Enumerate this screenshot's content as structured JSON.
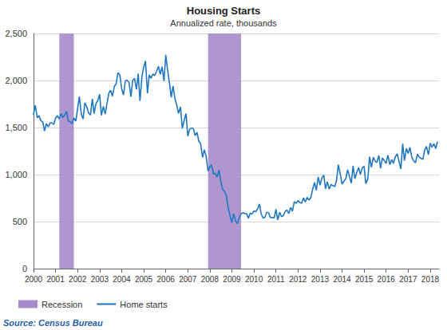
{
  "chart_data": {
    "type": "line",
    "title": "Housing Starts",
    "subtitle": "Annualized rate, thousands",
    "source": "Source: Census Bureau",
    "legend": "bottom",
    "grid": true,
    "xlim": [
      2000,
      2018.4
    ],
    "xticks": [
      2000,
      2001,
      2002,
      2003,
      2004,
      2005,
      2006,
      2007,
      2008,
      2009,
      2010,
      2011,
      2012,
      2013,
      2014,
      2015,
      2016,
      2017,
      2018
    ],
    "ylim": [
      0,
      2500
    ],
    "yticks": [
      0,
      500,
      {
        "value": 1000,
        "label": "1,000"
      },
      {
        "value": 1500,
        "label": "1,500"
      },
      {
        "value": 2000,
        "label": "2,000"
      },
      {
        "value": 2500,
        "label": "2,500"
      }
    ],
    "shading": {
      "name": "Recession",
      "color": "#a58bc9",
      "ranges": [
        [
          2001.17,
          2001.83
        ],
        [
          2007.92,
          2009.42
        ]
      ]
    },
    "x": [
      2000.0,
      2000.08,
      2000.17,
      2000.25,
      2000.33,
      2000.42,
      2000.5,
      2000.58,
      2000.67,
      2000.75,
      2000.83,
      2000.92,
      2001.0,
      2001.08,
      2001.17,
      2001.25,
      2001.33,
      2001.42,
      2001.5,
      2001.58,
      2001.67,
      2001.75,
      2001.83,
      2001.92,
      2002.0,
      2002.08,
      2002.17,
      2002.25,
      2002.33,
      2002.42,
      2002.5,
      2002.58,
      2002.67,
      2002.75,
      2002.83,
      2002.92,
      2003.0,
      2003.08,
      2003.17,
      2003.25,
      2003.33,
      2003.42,
      2003.5,
      2003.58,
      2003.67,
      2003.75,
      2003.83,
      2003.92,
      2004.0,
      2004.08,
      2004.17,
      2004.25,
      2004.33,
      2004.42,
      2004.5,
      2004.58,
      2004.67,
      2004.75,
      2004.83,
      2004.92,
      2005.0,
      2005.08,
      2005.17,
      2005.25,
      2005.33,
      2005.42,
      2005.5,
      2005.58,
      2005.67,
      2005.75,
      2005.83,
      2005.92,
      2006.0,
      2006.08,
      2006.17,
      2006.25,
      2006.33,
      2006.42,
      2006.5,
      2006.58,
      2006.67,
      2006.75,
      2006.83,
      2006.92,
      2007.0,
      2007.08,
      2007.17,
      2007.25,
      2007.33,
      2007.42,
      2007.5,
      2007.58,
      2007.67,
      2007.75,
      2007.83,
      2007.92,
      2008.0,
      2008.08,
      2008.17,
      2008.25,
      2008.33,
      2008.42,
      2008.5,
      2008.58,
      2008.67,
      2008.75,
      2008.83,
      2008.92,
      2009.0,
      2009.08,
      2009.17,
      2009.25,
      2009.33,
      2009.42,
      2009.5,
      2009.58,
      2009.67,
      2009.75,
      2009.83,
      2009.92,
      2010.0,
      2010.08,
      2010.17,
      2010.25,
      2010.33,
      2010.42,
      2010.5,
      2010.58,
      2010.67,
      2010.75,
      2010.83,
      2010.92,
      2011.0,
      2011.08,
      2011.17,
      2011.25,
      2011.33,
      2011.42,
      2011.5,
      2011.58,
      2011.67,
      2011.75,
      2011.83,
      2011.92,
      2012.0,
      2012.08,
      2012.17,
      2012.25,
      2012.33,
      2012.42,
      2012.5,
      2012.58,
      2012.67,
      2012.75,
      2012.83,
      2012.92,
      2013.0,
      2013.08,
      2013.17,
      2013.25,
      2013.33,
      2013.42,
      2013.5,
      2013.58,
      2013.67,
      2013.75,
      2013.83,
      2013.92,
      2014.0,
      2014.08,
      2014.17,
      2014.25,
      2014.33,
      2014.42,
      2014.5,
      2014.58,
      2014.67,
      2014.75,
      2014.83,
      2014.92,
      2015.0,
      2015.08,
      2015.17,
      2015.25,
      2015.33,
      2015.42,
      2015.5,
      2015.58,
      2015.67,
      2015.75,
      2015.83,
      2015.92,
      2016.0,
      2016.08,
      2016.17,
      2016.25,
      2016.33,
      2016.42,
      2016.5,
      2016.58,
      2016.67,
      2016.75,
      2016.83,
      2016.92,
      2017.0,
      2017.08,
      2017.17,
      2017.25,
      2017.33,
      2017.42,
      2017.5,
      2017.58,
      2017.67,
      2017.75,
      2017.83,
      2017.92,
      2018.0,
      2018.08,
      2018.17,
      2018.25,
      2018.33
    ],
    "series": [
      {
        "name": "Home starts",
        "color": "#1f77c4",
        "values": [
          1636,
          1737,
          1604,
          1626,
          1575,
          1559,
          1463,
          1541,
          1507,
          1549,
          1551,
          1532,
          1600,
          1625,
          1590,
          1649,
          1605,
          1636,
          1670,
          1567,
          1562,
          1540,
          1602,
          1568,
          1698,
          1829,
          1642,
          1592,
          1764,
          1717,
          1655,
          1633,
          1804,
          1648,
          1753,
          1788,
          1853,
          1629,
          1726,
          1643,
          1751,
          1867,
          1897,
          1833,
          1939,
          1967,
          2083,
          2057,
          1911,
          1846,
          1998,
          2003,
          1981,
          1828,
          2002,
          2024,
          1905,
          2072,
          1782,
          2042,
          2144,
          2207,
          1864,
          2061,
          2025,
          2068,
          2054,
          2095,
          2151,
          2065,
          2147,
          1994,
          2273,
          2119,
          1969,
          1821,
          1942,
          1802,
          1737,
          1650,
          1720,
          1491,
          1570,
          1649,
          1409,
          1480,
          1495,
          1490,
          1415,
          1448,
          1354,
          1330,
          1183,
          1264,
          1197,
          1037,
          1084,
          1103,
          1005,
          1013,
          973,
          1046,
          923,
          844,
          820,
          777,
          652,
          560,
          490,
          582,
          505,
          478,
          540,
          585,
          594,
          586,
          585,
          534,
          588,
          581,
          614,
          604,
          636,
          687,
          583,
          536,
          546,
          599,
          594,
          543,
          545,
          539,
          630,
          517,
          600,
          554,
          561,
          608,
          623,
          585,
          650,
          611,
          711,
          694,
          723,
          704,
          695,
          753,
          708,
          757,
          728,
          754,
          847,
          915,
          833,
          976,
          888,
          962,
          994,
          849,
          923,
          846,
          895,
          883,
          873,
          936,
          1105,
          1003,
          897,
          928,
          955,
          1052,
          985,
          909,
          1093,
          956,
          1025,
          1074,
          1001,
          1074,
          1088,
          904,
          954,
          1190,
          1078,
          1184,
          1143,
          1128,
          1203,
          1066,
          1177,
          1149,
          1117,
          1206,
          1105,
          1159,
          1119,
          1191,
          1220,
          1144,
          1060,
          1327,
          1148,
          1278,
          1224,
          1289,
          1179,
          1147,
          1125,
          1217,
          1185,
          1172,
          1162,
          1262,
          1299,
          1210,
          1334,
          1290,
          1327,
          1276,
          1350
        ]
      }
    ]
  }
}
